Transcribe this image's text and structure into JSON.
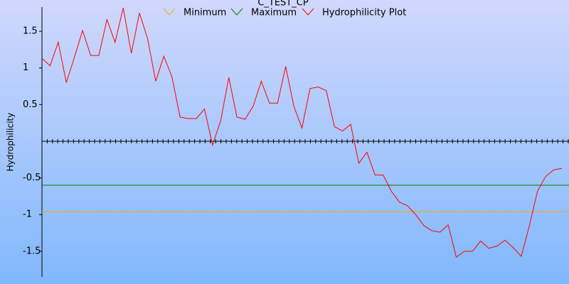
{
  "chart_data": {
    "type": "line",
    "title": "C_TEST_CP",
    "y_label": "Hydrophilicity",
    "ylim": [
      -1.85,
      1.83
    ],
    "yticks": [
      -1.5,
      -1,
      -0.5,
      0.5,
      1,
      1.5
    ],
    "series": [
      {
        "name": "Minimum",
        "color": "#ffa500",
        "values": [
          -0.96
        ]
      },
      {
        "name": "Maximum",
        "color": "#008000",
        "values": [
          -0.6
        ]
      },
      {
        "name": "Hydrophilicity Plot",
        "color": "#ff0000",
        "values": [
          1.13,
          1.03,
          1.35,
          0.8,
          1.15,
          1.51,
          1.17,
          1.17,
          1.66,
          1.35,
          1.82,
          1.2,
          1.75,
          1.4,
          0.82,
          1.16,
          0.88,
          0.33,
          0.31,
          0.31,
          0.44,
          -0.05,
          0.28,
          0.87,
          0.33,
          0.3,
          0.48,
          0.82,
          0.52,
          0.52,
          1.02,
          0.48,
          0.18,
          0.72,
          0.74,
          0.69,
          0.2,
          0.14,
          0.23,
          -0.3,
          -0.15,
          -0.46,
          -0.46,
          -0.68,
          -0.83,
          -0.88,
          -1.0,
          -1.15,
          -1.22,
          -1.24,
          -1.14,
          -1.58,
          -1.5,
          -1.5,
          -1.36,
          -1.46,
          -1.43,
          -1.35,
          -1.45,
          -1.57,
          -1.15,
          -0.68,
          -0.48,
          -0.39,
          -0.37
        ]
      }
    ]
  }
}
